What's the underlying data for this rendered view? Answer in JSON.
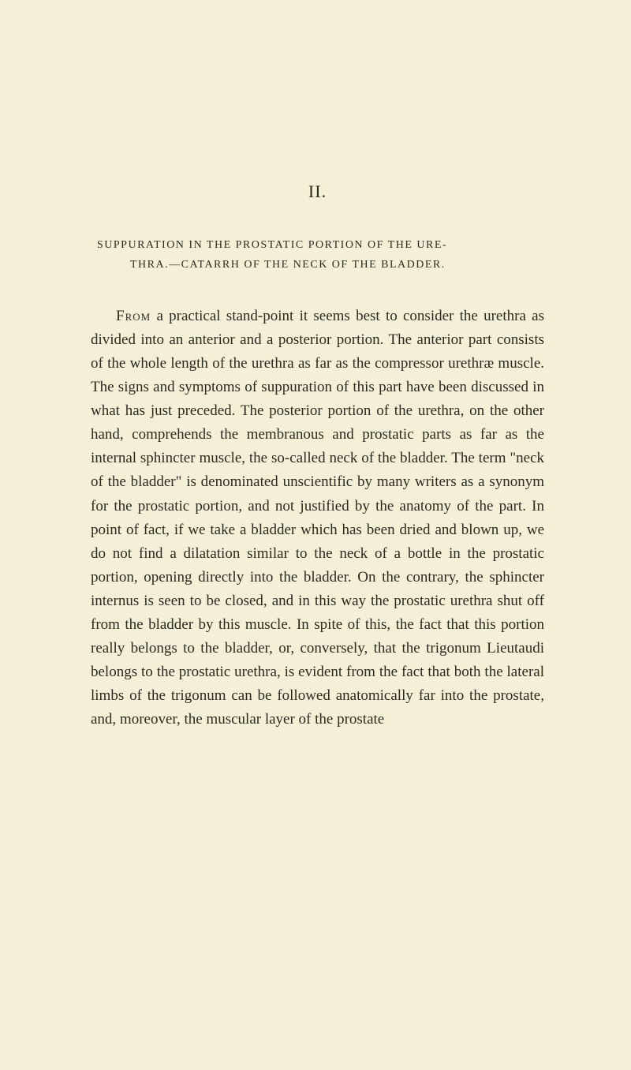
{
  "chapter": {
    "number": "II.",
    "title_line1": "SUPPURATION IN THE PROSTATIC PORTION OF THE URE-",
    "title_line2": "THRA.—CATARRH OF THE NECK OF THE BLADDER."
  },
  "paragraph": {
    "lead": "From",
    "body": " a practical stand-point it seems best to consider the urethra as divided into an anterior and a posterior portion. The anterior part consists of the whole length of the urethra as far as the compressor urethræ muscle. The signs and symptoms of suppuration of this part have been discussed in what has just preceded. The posterior portion of the urethra, on the other hand, comprehends the membranous and prostatic parts as far as the internal sphincter muscle, the so-called neck of the bladder. The term \"neck of the bladder\" is denominated unscientific by many writers as a synonym for the prostatic portion, and not justified by the anatomy of the part. In point of fact, if we take a bladder which has been dried and blown up, we do not find a dilatation similar to the neck of a bottle in the prostatic portion, opening directly into the bladder. On the contrary, the sphincter internus is seen to be closed, and in this way the prostatic urethra shut off from the bladder by this muscle. In spite of this, the fact that this portion really belongs to the bladder, or, conversely, that the trigonum Lieutaudi belongs to the prostatic urethra, is evident from the fact that both the lateral limbs of the trigonum can be followed anatomically far into the prostate, and, moreover, the muscular layer of the prostate"
  },
  "colors": {
    "background": "#f5efd8",
    "text": "#2a2a1f"
  },
  "typography": {
    "chapter_number_fontsize": 22,
    "chapter_title_fontsize": 14,
    "body_fontsize": 19,
    "body_lineheight": 1.58
  }
}
